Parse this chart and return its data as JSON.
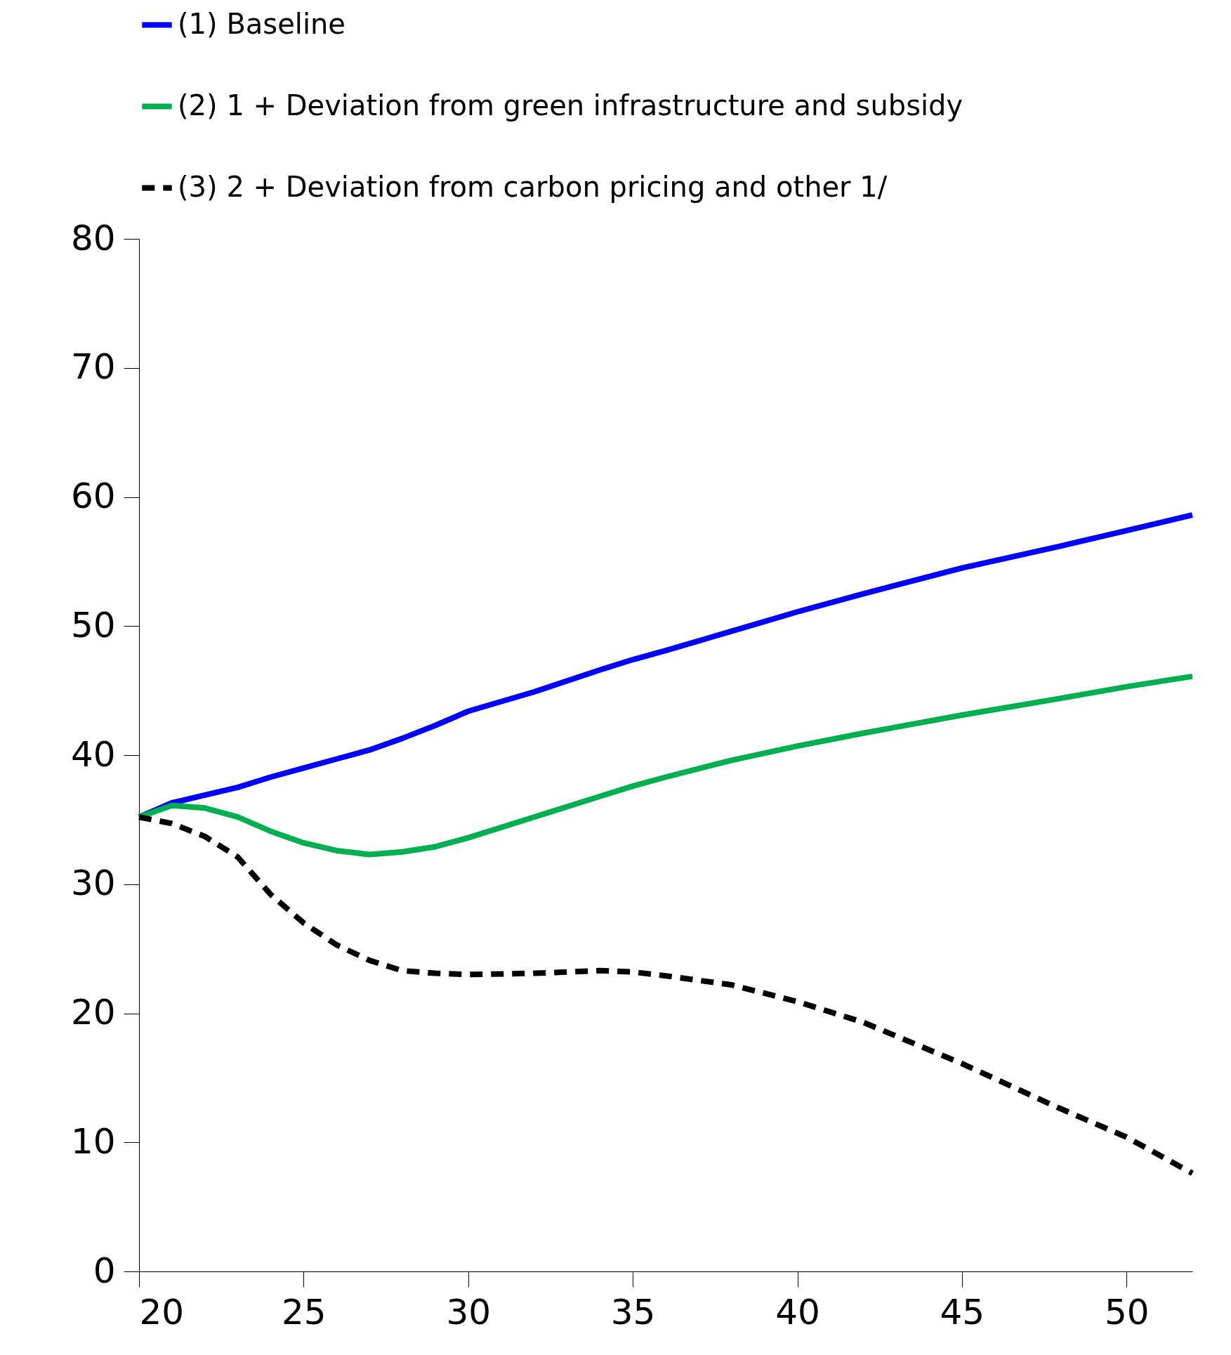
{
  "chart_data": {
    "type": "line",
    "x": [
      20,
      21,
      22,
      23,
      24,
      25,
      26,
      27,
      28,
      29,
      30,
      32,
      34,
      35,
      36,
      38,
      40,
      42,
      45,
      48,
      50,
      52
    ],
    "series": [
      {
        "name": "(1) Baseline",
        "color": "#0000ff",
        "line_style": "solid",
        "values": [
          35.2,
          36.3,
          36.9,
          37.5,
          38.3,
          39.0,
          39.7,
          40.4,
          41.3,
          42.3,
          43.4,
          44.9,
          46.6,
          47.4,
          48.1,
          49.6,
          51.1,
          52.5,
          54.5,
          56.2,
          57.4,
          58.6
        ]
      },
      {
        "name": "(2) 1 + Deviation from green infrastructure and subsidy",
        "color": "#00b050",
        "line_style": "solid",
        "values": [
          35.2,
          36.1,
          35.9,
          35.2,
          34.1,
          33.2,
          32.6,
          32.3,
          32.5,
          32.9,
          33.6,
          35.2,
          36.8,
          37.6,
          38.3,
          39.6,
          40.7,
          41.7,
          43.1,
          44.4,
          45.3,
          46.1
        ]
      },
      {
        "name": "(3) 2 + Deviation from carbon pricing and other 1/",
        "color": "#000000",
        "line_style": "dashed",
        "values": [
          35.2,
          34.7,
          33.7,
          32.1,
          29.2,
          27.0,
          25.3,
          24.1,
          23.3,
          23.1,
          23.0,
          23.1,
          23.3,
          23.2,
          22.9,
          22.2,
          20.9,
          19.3,
          16.1,
          12.6,
          10.4,
          7.6
        ]
      }
    ],
    "xlim": [
      20,
      52
    ],
    "xticks": [
      20,
      25,
      30,
      35,
      40,
      45,
      50
    ],
    "ylim": [
      0,
      80
    ],
    "yticks": [
      0,
      10,
      20,
      30,
      40,
      50,
      60,
      70,
      80
    ],
    "grid": false,
    "legend": "top",
    "marker": "none"
  }
}
